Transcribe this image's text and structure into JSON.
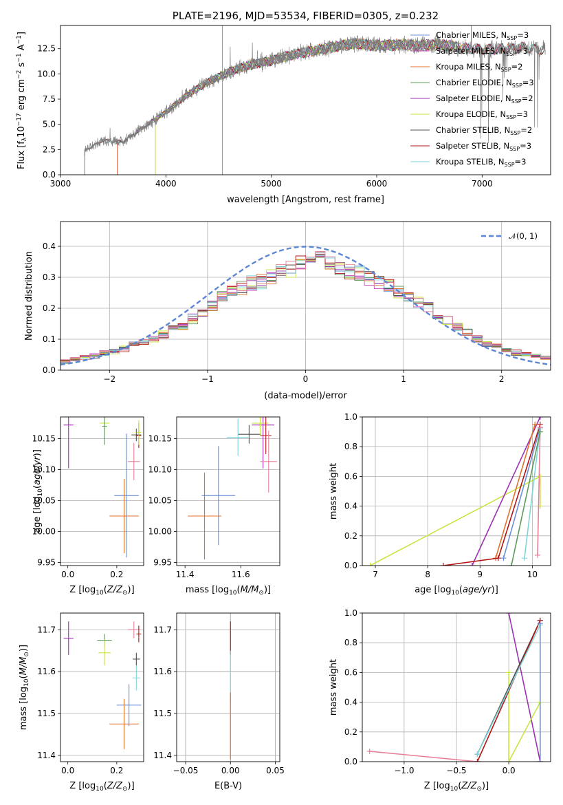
{
  "colors": {
    "chabrier_miles": "#6a8fd8",
    "salpeter_miles": "#c44fbf",
    "kroupa_miles": "#e0702a",
    "chabrier_elodie": "#5a9a5a",
    "salpeter_elodie": "#9b30b0",
    "kroupa_elodie": "#c8e640",
    "chabrier_stelib": "#505050",
    "salpeter_stelib": "#b41414",
    "kroupa_stelib": "#7fd6d8",
    "data": "#808080",
    "gauss": "#5b86d6",
    "pink": "#e8809a"
  },
  "chart_data": [
    {
      "type": "line",
      "title": "PLATE=2196, MJD=53534, FIBERID=0305, z=0.232",
      "xlabel": "wavelength [Angstrom, rest frame]",
      "ylabel": "Flux [f_λ10^-17 erg cm^-2 s^-1 A^-1]",
      "xlim": [
        3000,
        7650
      ],
      "ylim": [
        0,
        14.8
      ],
      "xticks": [
        "3000",
        "4000",
        "5000",
        "6000",
        "7000"
      ],
      "yticks": [
        "0.0",
        "2.5",
        "5.0",
        "7.5",
        "10.0",
        "12.5"
      ],
      "legend_position": "top-right",
      "legend": [
        {
          "name": "Chabrier MILES, N",
          "sub": "SSP",
          "val": "=3"
        },
        {
          "name": "Salpeter MILES, N",
          "sub": "SSP",
          "val": "=3"
        },
        {
          "name": "Kroupa MILES, N",
          "sub": "SSP",
          "val": "=2"
        },
        {
          "name": "Chabrier ELODIE, N",
          "sub": "SSP",
          "val": "=3"
        },
        {
          "name": "Salpeter ELODIE, N",
          "sub": "SSP",
          "val": "=2"
        },
        {
          "name": "Kroupa ELODIE, N",
          "sub": "SSP",
          "val": "=3"
        },
        {
          "name": "Chabrier STELIB, N",
          "sub": "SSP",
          "val": "=2"
        },
        {
          "name": "Salpeter STELIB, N",
          "sub": "SSP",
          "val": "=3"
        },
        {
          "name": "Kroupa STELIB, N",
          "sub": "SSP",
          "val": "=3"
        }
      ],
      "continuum_x": [
        3230,
        3400,
        3600,
        3800,
        4000,
        4200,
        4400,
        4600,
        4800,
        5000,
        5200,
        5400,
        5600,
        5800,
        6000,
        6200,
        6400,
        6600,
        6800,
        7000,
        7200,
        7400,
        7600
      ],
      "continuum_y": [
        2.4,
        3.4,
        3.3,
        4.8,
        6.2,
        7.9,
        9.2,
        10.2,
        10.9,
        11.3,
        11.9,
        12.3,
        12.7,
        13.0,
        12.8,
        12.9,
        12.8,
        12.9,
        12.6,
        12.4,
        12.5,
        12.6,
        12.4
      ]
    },
    {
      "type": "bar",
      "xlabel": "(data-model)/error",
      "ylabel": "Normed distribution",
      "xlim": [
        -2.5,
        2.5
      ],
      "ylim": [
        0,
        0.48
      ],
      "xticks": [
        "−2",
        "−1",
        "0",
        "1",
        "2"
      ],
      "yticks": [
        "0.0",
        "0.1",
        "0.2",
        "0.3",
        "0.4"
      ],
      "legend": "𝒩(0, 1)",
      "legend_position": "top-right",
      "grid": true,
      "bin_width": 0.1,
      "bins_from": -2.5,
      "series_base": [
        0.03,
        0.035,
        0.04,
        0.047,
        0.055,
        0.06,
        0.07,
        0.08,
        0.09,
        0.1,
        0.115,
        0.13,
        0.145,
        0.165,
        0.185,
        0.21,
        0.235,
        0.255,
        0.27,
        0.28,
        0.29,
        0.3,
        0.315,
        0.33,
        0.345,
        0.36,
        0.36,
        0.345,
        0.33,
        0.32,
        0.31,
        0.3,
        0.285,
        0.27,
        0.255,
        0.24,
        0.22,
        0.2,
        0.18,
        0.16,
        0.14,
        0.12,
        0.1,
        0.085,
        0.075,
        0.065,
        0.058,
        0.052,
        0.047,
        0.042
      ]
    },
    {
      "type": "scatter",
      "xlabel": "Z [log10(Z/Z⊙)]",
      "ylabel": "age  [log10(age/yr)]",
      "xlim": [
        -0.03,
        0.31
      ],
      "ylim": [
        9.945,
        10.185
      ],
      "xticks": [
        "0.0",
        "0.2"
      ],
      "yticks": [
        "9.95",
        "10.00",
        "10.05",
        "10.10",
        "10.15"
      ],
      "points": [
        {
          "series": "salpeter_elodie",
          "x": 0.003,
          "y": 10.172,
          "xerr": 0.02,
          "yerr": 0.07
        },
        {
          "series": "kroupa_elodie",
          "x": 0.15,
          "y": 10.175,
          "xerr": 0.02,
          "yerr": 0.02
        },
        {
          "series": "chabrier_elodie",
          "x": 0.15,
          "y": 10.17,
          "xerr": 0.01,
          "yerr": 0.03
        },
        {
          "series": "chabrier_stelib",
          "x": 0.28,
          "y": 10.156,
          "xerr": 0.02,
          "yerr": 0.01
        },
        {
          "series": "salpeter_stelib",
          "x": 0.29,
          "y": 10.155,
          "xerr": 0.01,
          "yerr": 0.02
        },
        {
          "series": "kroupa_elodie",
          "x": 0.29,
          "y": 10.16,
          "xerr": 0.01,
          "yerr": 0.02
        },
        {
          "series": "pink",
          "x": 0.27,
          "y": 10.113,
          "xerr": 0.025,
          "yerr": 0.03
        },
        {
          "series": "chabrier_miles",
          "x": 0.24,
          "y": 10.058,
          "xerr": 0.05,
          "yerr": 0.1
        },
        {
          "series": "kroupa_miles",
          "x": 0.23,
          "y": 10.025,
          "xerr": 0.06,
          "yerr": 0.06
        }
      ]
    },
    {
      "type": "scatter",
      "xlabel": "mass [log10(M/M⊙)]",
      "xlim": [
        11.37,
        11.74
      ],
      "ylim": [
        9.945,
        10.185
      ],
      "xticks": [
        "11.4",
        "11.6"
      ],
      "yticks": [
        "9.95",
        "10.00",
        "10.05",
        "10.10",
        "10.15"
      ],
      "points": [
        {
          "series": "salpeter_elodie",
          "x": 11.68,
          "y": 10.172,
          "xerr": 0.04,
          "yerr": 0.07
        },
        {
          "series": "kroupa_elodie",
          "x": 11.67,
          "y": 10.175,
          "xerr": 0.03,
          "yerr": 0.02
        },
        {
          "series": "chabrier_stelib",
          "x": 11.63,
          "y": 10.157,
          "xerr": 0.04,
          "yerr": 0.015
        },
        {
          "series": "salpeter_stelib",
          "x": 11.69,
          "y": 10.155,
          "xerr": 0.02,
          "yerr": 0.03
        },
        {
          "series": "kroupa_stelib",
          "x": 11.59,
          "y": 10.152,
          "xerr": 0.04,
          "yerr": 0.03
        },
        {
          "series": "pink",
          "x": 11.7,
          "y": 10.113,
          "xerr": 0.03,
          "yerr": 0.05
        },
        {
          "series": "chabrier_miles",
          "x": 11.52,
          "y": 10.058,
          "xerr": 0.06,
          "yerr": 0.08
        },
        {
          "series": "kroupa_miles",
          "x": 11.47,
          "y": 10.025,
          "xerr": 0.06,
          "yerr": 0.07
        }
      ]
    },
    {
      "type": "line",
      "xlabel": "age  [log10(age/yr)]",
      "ylabel": "mass weight",
      "xlim": [
        6.75,
        10.35
      ],
      "ylim": [
        0,
        1.0
      ],
      "xticks": [
        "7",
        "8",
        "9",
        "10"
      ],
      "yticks": [
        "0.0",
        "0.2",
        "0.4",
        "0.6",
        "0.8",
        "1.0"
      ],
      "grid": true,
      "series": [
        {
          "name": "kroupa_elodie",
          "x": [
            6.9,
            10.15,
            10.15
          ],
          "y": [
            0.0,
            0.6,
            0.4
          ]
        },
        {
          "name": "salpeter_elodie",
          "x": [
            8.85,
            10.15
          ],
          "y": [
            0.0,
            1.0
          ]
        },
        {
          "name": "kroupa_miles",
          "x": [
            9.3,
            10.05
          ],
          "y": [
            0.05,
            0.95
          ]
        },
        {
          "name": "salpeter_stelib",
          "x": [
            8.3,
            9.35,
            10.15
          ],
          "y": [
            0.0,
            0.05,
            0.95
          ]
        },
        {
          "name": "chabrier_miles",
          "x": [
            9.45,
            10.15
          ],
          "y": [
            0.05,
            0.93
          ]
        },
        {
          "name": "kroupa_stelib",
          "x": [
            9.85,
            10.15
          ],
          "y": [
            0.05,
            0.92
          ]
        },
        {
          "name": "pink",
          "x": [
            10.1,
            10.15
          ],
          "y": [
            0.07,
            0.93
          ]
        },
        {
          "name": "chabrier_elodie",
          "x": [
            9.6,
            10.15
          ],
          "y": [
            0.0,
            0.9
          ]
        }
      ]
    },
    {
      "type": "scatter",
      "xlabel": "Z [log10(Z/Z⊙)]",
      "ylabel": "mass [log10(M/M⊙)]",
      "xlim": [
        -0.03,
        0.31
      ],
      "ylim": [
        11.385,
        11.74
      ],
      "xticks": [
        "0.0",
        "0.2"
      ],
      "yticks": [
        "11.4",
        "11.5",
        "11.6",
        "11.7"
      ],
      "points": [
        {
          "series": "salpeter_elodie",
          "x": 0.003,
          "y": 11.68,
          "xerr": 0.02,
          "yerr": 0.04
        },
        {
          "series": "chabrier_elodie",
          "x": 0.15,
          "y": 11.675,
          "xerr": 0.03,
          "yerr": 0.015
        },
        {
          "series": "kroupa_elodie",
          "x": 0.15,
          "y": 11.645,
          "xerr": 0.025,
          "yerr": 0.03
        },
        {
          "series": "pink",
          "x": 0.27,
          "y": 11.7,
          "xerr": 0.025,
          "yerr": 0.02
        },
        {
          "series": "salpeter_stelib",
          "x": 0.29,
          "y": 11.69,
          "xerr": 0.01,
          "yerr": 0.02
        },
        {
          "series": "chabrier_stelib",
          "x": 0.28,
          "y": 11.63,
          "xerr": 0.015,
          "yerr": 0.015
        },
        {
          "series": "kroupa_stelib",
          "x": 0.28,
          "y": 11.585,
          "xerr": 0.015,
          "yerr": 0.03
        },
        {
          "series": "chabrier_miles",
          "x": 0.25,
          "y": 11.52,
          "xerr": 0.05,
          "yerr": 0.05
        },
        {
          "series": "kroupa_miles",
          "x": 0.23,
          "y": 11.475,
          "xerr": 0.06,
          "yerr": 0.06
        }
      ]
    },
    {
      "type": "scatter",
      "xlabel": "E(B-V)",
      "xlim": [
        -0.06,
        0.055
      ],
      "ylim": [
        11.385,
        11.74
      ],
      "xticks": [
        "−0.05",
        "0.00",
        "0.05"
      ],
      "yticks": [
        "11.4",
        "11.5",
        "11.6",
        "11.7"
      ],
      "grid": true,
      "points": [
        {
          "series": "salpeter_stelib",
          "x": 0.0,
          "y": 11.68,
          "yerr": 0.04
        },
        {
          "series": "kroupa_stelib",
          "x": 0.0,
          "y": 11.59,
          "yerr": 0.06
        },
        {
          "series": "kroupa_miles",
          "x": 0.0,
          "y": 11.47,
          "yerr": 0.08
        }
      ]
    },
    {
      "type": "line",
      "xlabel": "Z [log10(Z/Z⊙)]",
      "ylabel": "mass weight",
      "xlim": [
        -1.4,
        0.4
      ],
      "ylim": [
        0,
        1.0
      ],
      "xticks": [
        "−1.0",
        "−0.5",
        "0.0"
      ],
      "yticks": [
        "0.0",
        "0.2",
        "0.4",
        "0.6",
        "0.8",
        "1.0"
      ],
      "grid": true,
      "series": [
        {
          "name": "pink",
          "x": [
            -1.33,
            -0.3
          ],
          "y": [
            0.07,
            0.0
          ]
        },
        {
          "name": "salpeter_elodie",
          "x": [
            0.0,
            0.3
          ],
          "y": [
            1.0,
            0.0
          ]
        },
        {
          "name": "kroupa_elodie",
          "x": [
            0.0,
            0.0,
            0.3
          ],
          "y": [
            0.6,
            0.0,
            0.4
          ]
        },
        {
          "name": "chabrier_stelib",
          "x": [
            -0.3,
            0.3
          ],
          "y": [
            0.05,
            0.95
          ]
        },
        {
          "name": "salpeter_stelib",
          "x": [
            -0.3,
            0.3
          ],
          "y": [
            0.0,
            0.95
          ]
        },
        {
          "name": "kroupa_stelib",
          "x": [
            -0.3,
            0.3
          ],
          "y": [
            0.05,
            0.92
          ]
        },
        {
          "name": "chabrier_miles",
          "x": [
            0.3,
            0.3
          ],
          "y": [
            0.0,
            0.93
          ]
        }
      ]
    }
  ]
}
